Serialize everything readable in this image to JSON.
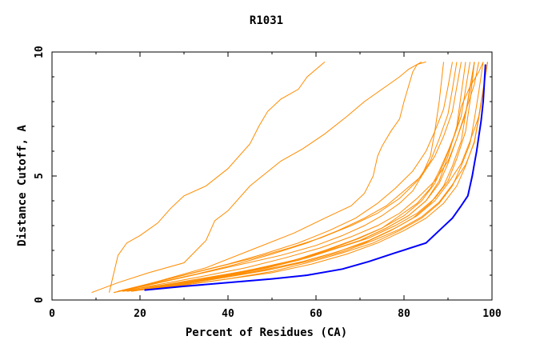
{
  "chart_data": {
    "type": "line",
    "title": "R1031",
    "xlabel": "Percent of Residues (CA)",
    "ylabel": "Distance Cutoff, A",
    "xlim": [
      0,
      100
    ],
    "ylim": [
      0,
      10
    ],
    "xticks": [
      0,
      20,
      40,
      60,
      80,
      100
    ],
    "yticks": [
      0,
      5,
      10
    ],
    "grid": false,
    "colors": {
      "others": "#ff8c00",
      "highlight": "#0000ff"
    },
    "highlight": {
      "x": [
        21,
        30,
        40,
        50,
        58,
        66,
        72,
        78,
        85,
        88,
        91,
        93,
        94.5,
        95.5,
        96,
        96.5,
        97,
        97.5,
        98,
        98.5
      ],
      "y": [
        0.4,
        0.55,
        0.7,
        0.85,
        1.0,
        1.25,
        1.55,
        1.9,
        2.3,
        2.8,
        3.3,
        3.8,
        4.2,
        5.0,
        5.5,
        6.0,
        6.6,
        7.2,
        8.0,
        9.5
      ]
    },
    "series": [
      {
        "x": [
          13,
          15,
          17,
          20,
          24,
          27,
          30,
          35,
          40,
          45,
          47,
          49,
          52,
          56,
          58,
          62
        ],
        "y": [
          0.3,
          1.8,
          2.3,
          2.6,
          3.1,
          3.7,
          4.2,
          4.6,
          5.3,
          6.3,
          7.0,
          7.6,
          8.1,
          8.5,
          9.0,
          9.6
        ]
      },
      {
        "x": [
          9,
          15,
          22,
          30,
          35,
          37,
          40,
          45,
          52,
          57,
          62,
          67,
          71,
          75,
          79,
          81,
          84
        ],
        "y": [
          0.3,
          0.7,
          1.1,
          1.5,
          2.4,
          3.2,
          3.6,
          4.6,
          5.6,
          6.1,
          6.7,
          7.4,
          8.0,
          8.5,
          9.0,
          9.3,
          9.6
        ]
      },
      {
        "x": [
          16,
          25,
          35,
          45,
          55,
          62,
          68,
          71,
          73,
          74,
          75,
          77,
          79,
          80,
          81,
          82,
          83,
          85
        ],
        "y": [
          0.35,
          0.8,
          1.3,
          2.0,
          2.7,
          3.3,
          3.8,
          4.3,
          5.0,
          5.8,
          6.2,
          6.8,
          7.3,
          8.0,
          8.6,
          9.2,
          9.5,
          9.6
        ]
      },
      {
        "x": [
          14,
          22,
          32,
          42,
          52,
          60,
          66,
          71,
          75,
          79,
          82,
          84,
          86,
          87,
          88,
          89
        ],
        "y": [
          0.3,
          0.6,
          1.0,
          1.4,
          1.8,
          2.2,
          2.6,
          3.0,
          3.4,
          3.9,
          4.4,
          5.0,
          5.8,
          6.8,
          8.0,
          9.6
        ]
      },
      {
        "x": [
          15,
          25,
          35,
          45,
          55,
          63,
          70,
          76,
          81,
          85,
          88,
          90,
          92,
          93,
          94
        ],
        "y": [
          0.35,
          0.6,
          0.9,
          1.2,
          1.6,
          2.0,
          2.4,
          2.9,
          3.4,
          4.0,
          4.8,
          5.8,
          7.0,
          8.3,
          9.6
        ]
      },
      {
        "x": [
          16,
          26,
          36,
          46,
          56,
          64,
          71,
          77,
          82,
          86,
          89,
          91,
          93,
          94,
          95,
          96
        ],
        "y": [
          0.35,
          0.55,
          0.85,
          1.15,
          1.5,
          1.9,
          2.3,
          2.8,
          3.3,
          3.9,
          4.6,
          5.4,
          6.4,
          7.5,
          8.6,
          9.6
        ]
      },
      {
        "x": [
          17,
          27,
          37,
          47,
          56,
          63,
          70,
          76,
          81,
          85,
          88,
          90,
          92,
          94,
          96,
          97
        ],
        "y": [
          0.35,
          0.6,
          0.9,
          1.25,
          1.6,
          2.0,
          2.4,
          2.9,
          3.4,
          4.0,
          4.7,
          5.5,
          6.5,
          7.6,
          8.7,
          9.6
        ]
      },
      {
        "x": [
          18,
          28,
          38,
          48,
          57,
          64,
          70,
          75,
          79,
          83,
          86,
          88,
          90,
          92,
          93,
          95,
          97,
          98
        ],
        "y": [
          0.35,
          0.6,
          0.95,
          1.3,
          1.7,
          2.1,
          2.5,
          2.9,
          3.4,
          3.9,
          4.5,
          5.2,
          6.0,
          6.9,
          7.8,
          8.6,
          9.2,
          9.6
        ]
      },
      {
        "x": [
          15,
          24,
          33,
          42,
          50,
          58,
          65,
          71,
          76,
          80,
          84,
          87,
          89,
          91,
          92,
          93
        ],
        "y": [
          0.35,
          0.7,
          1.05,
          1.45,
          1.85,
          2.3,
          2.8,
          3.3,
          3.8,
          4.4,
          5.0,
          5.8,
          6.6,
          7.6,
          8.6,
          9.6
        ]
      },
      {
        "x": [
          19,
          29,
          39,
          49,
          58,
          65,
          72,
          78,
          83,
          87,
          90,
          92,
          94,
          95,
          96
        ],
        "y": [
          0.4,
          0.65,
          0.95,
          1.3,
          1.7,
          2.1,
          2.5,
          3.0,
          3.5,
          4.1,
          4.8,
          5.7,
          6.8,
          8.0,
          9.6
        ]
      },
      {
        "x": [
          20,
          30,
          40,
          50,
          58,
          66,
          73,
          79,
          84,
          88,
          91,
          93,
          95,
          96,
          97,
          98
        ],
        "y": [
          0.4,
          0.6,
          0.85,
          1.15,
          1.5,
          1.9,
          2.3,
          2.8,
          3.3,
          3.9,
          4.6,
          5.4,
          6.3,
          7.3,
          8.4,
          9.6
        ]
      },
      {
        "x": [
          14,
          22,
          30,
          38,
          46,
          54,
          61,
          68,
          74,
          79,
          83,
          86,
          88,
          90,
          91,
          92
        ],
        "y": [
          0.3,
          0.65,
          1.0,
          1.35,
          1.7,
          2.1,
          2.5,
          3.0,
          3.5,
          4.1,
          4.8,
          5.6,
          6.5,
          7.5,
          8.5,
          9.6
        ]
      },
      {
        "x": [
          17,
          26,
          36,
          46,
          55,
          62,
          69,
          75,
          80,
          84,
          87,
          89,
          91,
          93,
          94,
          95
        ],
        "y": [
          0.35,
          0.6,
          0.9,
          1.25,
          1.6,
          2.0,
          2.45,
          2.9,
          3.4,
          4.0,
          4.7,
          5.5,
          6.4,
          7.4,
          8.5,
          9.6
        ]
      },
      {
        "x": [
          20,
          30,
          40,
          50,
          59,
          67,
          74,
          80,
          85,
          89,
          92,
          94,
          96,
          97,
          98,
          99
        ],
        "y": [
          0.4,
          0.6,
          0.85,
          1.1,
          1.45,
          1.85,
          2.3,
          2.8,
          3.3,
          3.9,
          4.6,
          5.4,
          6.4,
          7.4,
          8.5,
          9.6
        ]
      },
      {
        "x": [
          15,
          23,
          31,
          40,
          48,
          56,
          63,
          69,
          74,
          78,
          82,
          85,
          87,
          89,
          90,
          91
        ],
        "y": [
          0.35,
          0.7,
          1.05,
          1.45,
          1.85,
          2.3,
          2.8,
          3.3,
          3.9,
          4.5,
          5.2,
          6.0,
          6.8,
          7.7,
          8.6,
          9.6
        ]
      },
      {
        "x": [
          18,
          28,
          38,
          48,
          57,
          65,
          72,
          78,
          83,
          87,
          90,
          93,
          95,
          97,
          98,
          99
        ],
        "y": [
          0.35,
          0.6,
          0.9,
          1.2,
          1.55,
          1.95,
          2.4,
          2.9,
          3.4,
          4.0,
          4.7,
          5.5,
          6.4,
          7.4,
          8.5,
          9.6
        ]
      },
      {
        "x": [
          16,
          25,
          34,
          44,
          53,
          61,
          68,
          74,
          79,
          83,
          87,
          90,
          92,
          94,
          95,
          96
        ],
        "y": [
          0.35,
          0.65,
          0.95,
          1.3,
          1.7,
          2.1,
          2.55,
          3.0,
          3.5,
          4.1,
          4.8,
          5.6,
          6.5,
          7.5,
          8.5,
          9.6
        ]
      },
      {
        "x": [
          19,
          29,
          39,
          49,
          58,
          66,
          73,
          79,
          84,
          88,
          91,
          94,
          96,
          97,
          98,
          99
        ],
        "y": [
          0.4,
          0.6,
          0.9,
          1.2,
          1.55,
          1.95,
          2.4,
          2.85,
          3.35,
          3.95,
          4.65,
          5.45,
          6.35,
          7.35,
          8.4,
          9.6
        ]
      }
    ]
  }
}
